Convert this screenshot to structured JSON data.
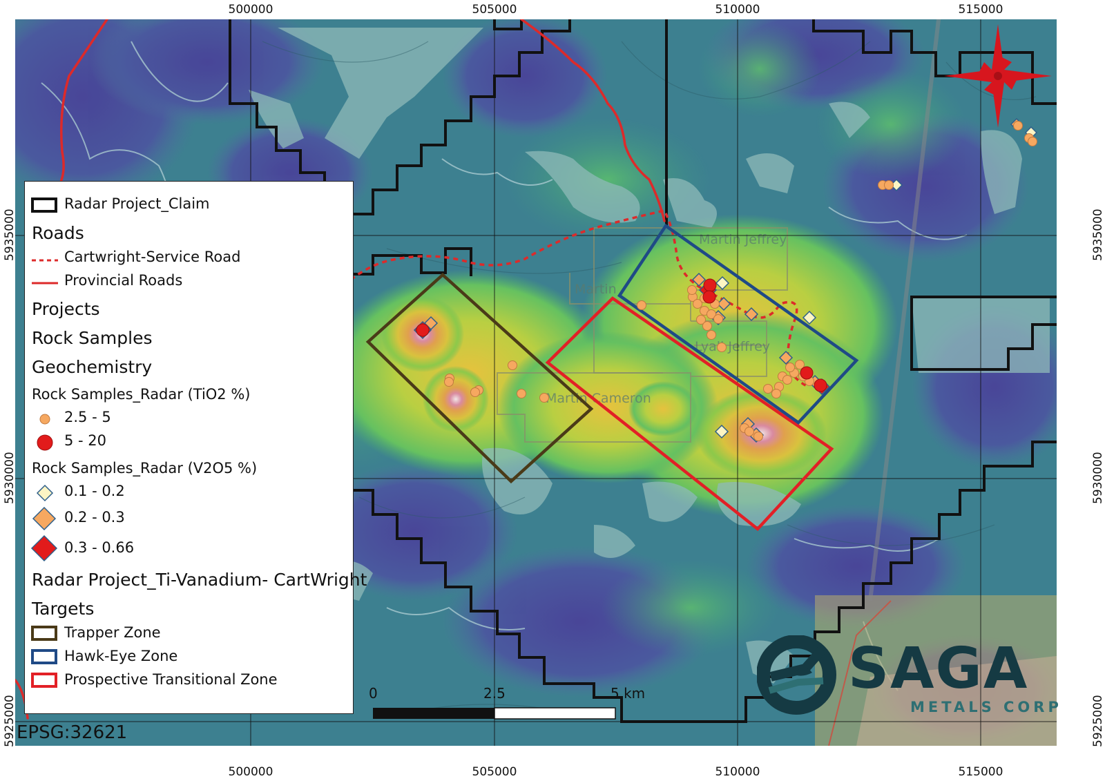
{
  "map": {
    "x_ticks": [
      "500000",
      "505000",
      "510000",
      "515000"
    ],
    "y_ticks": [
      "5935000",
      "5930000",
      "5925000"
    ],
    "crs_label": "EPSG:32621",
    "crs_label_shown": "EPSG:32621",
    "place_labels": [
      "Martin",
      "Martin Cameron",
      "Martin Jeffrey",
      "Lyall Jeffrey"
    ],
    "scale_bar": {
      "labels": [
        "0",
        "2.5",
        "5 km"
      ]
    },
    "north_arrow_icon": "compass-rose-icon",
    "colors": {
      "claim": "#111111",
      "road": "#dd2a2a",
      "trapper": "#4a3a18",
      "hawkeye": "#1f4a86",
      "transitional": "#e22026",
      "tio2_low": "#f6a860",
      "tio2_high": "#e21b1b"
    }
  },
  "legend": {
    "claim": "Radar Project_Claim",
    "roads_heading": "Roads",
    "service_road": "Cartwright-Service Road",
    "provincial_roads": "Provincial Roads",
    "projects_heading": "Projects",
    "rock_samples_heading": "Rock Samples",
    "geochem_heading": "Geochemistry",
    "tio2_heading": "Rock Samples_Radar (TiO2 %)",
    "tio2_classes": [
      "2.5 - 5",
      "5 - 20"
    ],
    "v2o5_heading": "Rock Samples_Radar (V2O5 %)",
    "v2o5_classes": [
      "0.1 - 0.2",
      "0.2 - 0.3",
      "0.3 - 0.66"
    ],
    "raster_layer": "Radar Project_Ti-Vanadium- CartWright",
    "targets_heading": "Targets",
    "targets": [
      "Trapper Zone",
      "Hawk-Eye Zone",
      "Prospective Transitional Zone"
    ]
  },
  "logo": {
    "name": "SAGA",
    "subtitle": "METALS CORP",
    "icon": "saga-logo-icon"
  }
}
